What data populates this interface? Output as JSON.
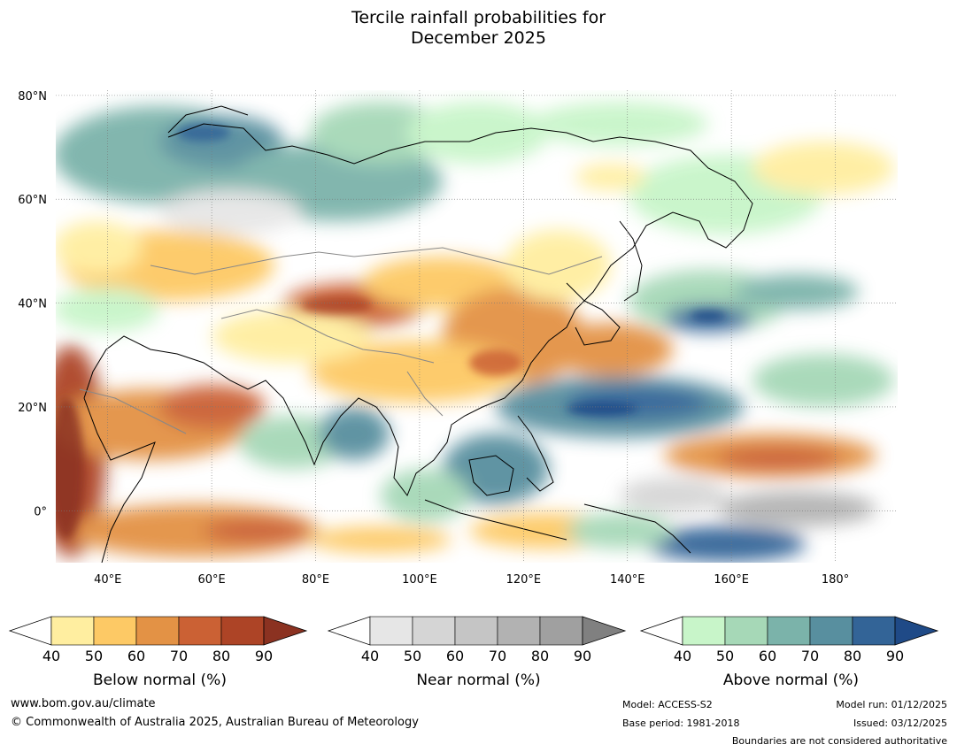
{
  "title": {
    "line1": "Tercile rainfall probabilities for",
    "line2": "December 2025"
  },
  "chart_data": {
    "type": "map",
    "lon_range": [
      30,
      192
    ],
    "lat_range": [
      -10,
      81
    ],
    "lat_ticks": [
      {
        "lat": 80,
        "label": "80°N"
      },
      {
        "lat": 60,
        "label": "60°N"
      },
      {
        "lat": 40,
        "label": "40°N"
      },
      {
        "lat": 20,
        "label": "20°N"
      },
      {
        "lat": 0,
        "label": "0°"
      }
    ],
    "lon_ticks": [
      {
        "lon": 40,
        "label": "40°E"
      },
      {
        "lon": 60,
        "label": "60°E"
      },
      {
        "lon": 80,
        "label": "80°E"
      },
      {
        "lon": 100,
        "label": "100°E"
      },
      {
        "lon": 120,
        "label": "120°E"
      },
      {
        "lon": 140,
        "label": "140°E"
      },
      {
        "lon": 160,
        "label": "160°E"
      },
      {
        "lon": 180,
        "label": "180°"
      }
    ],
    "colorbars": [
      {
        "title": "Below normal (%)",
        "ticks": [
          "40",
          "50",
          "60",
          "70",
          "80",
          "90"
        ],
        "colors": [
          "#ffeea0",
          "#fdc965",
          "#e39245",
          "#cb6134",
          "#ad4426"
        ],
        "extend": "#8b3221"
      },
      {
        "title": "Near normal (%)",
        "ticks": [
          "40",
          "50",
          "60",
          "70",
          "80",
          "90"
        ],
        "colors": [
          "#e6e6e6",
          "#d5d5d5",
          "#c5c5c5",
          "#b2b2b2",
          "#a0a0a0"
        ],
        "extend": "#808080"
      },
      {
        "title": "Above normal (%)",
        "ticks": [
          "40",
          "50",
          "60",
          "70",
          "80",
          "90"
        ],
        "colors": [
          "#c8f5c9",
          "#a6d8b7",
          "#7bb3aa",
          "#588f9f",
          "#336497"
        ],
        "extend": "#1f4a87"
      }
    ]
  },
  "footer": {
    "website": "www.bom.gov.au/climate",
    "copyright": "© Commonwealth of Australia 2025, Australian Bureau of Meteorology",
    "model": "Model: ACCESS-S2",
    "base_period": "Base period: 1981-2018",
    "model_run": "Model run: 01/12/2025",
    "issued": "Issued: 03/12/2025",
    "boundaries": "Boundaries are not considered authoritative"
  }
}
